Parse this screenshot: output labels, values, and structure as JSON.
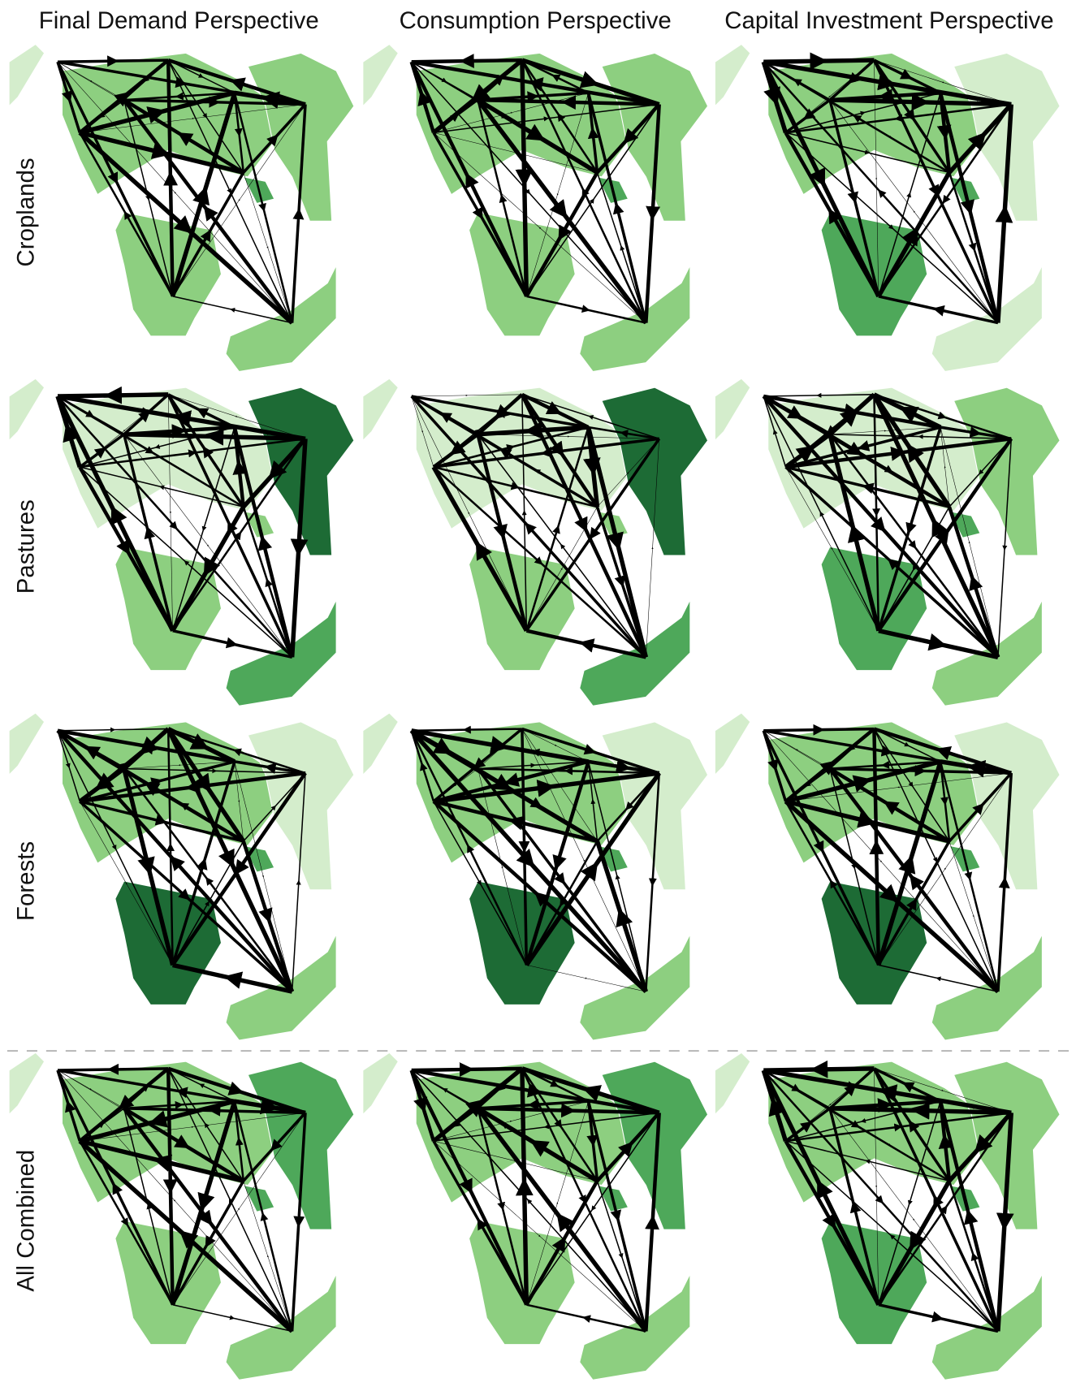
{
  "columns": [
    "Final Demand Perspective",
    "Consumption Perspective",
    "Capital Investment Perspective"
  ],
  "rows": [
    "Croplands",
    "Pastures",
    "Forests",
    "All Combined"
  ]
}
